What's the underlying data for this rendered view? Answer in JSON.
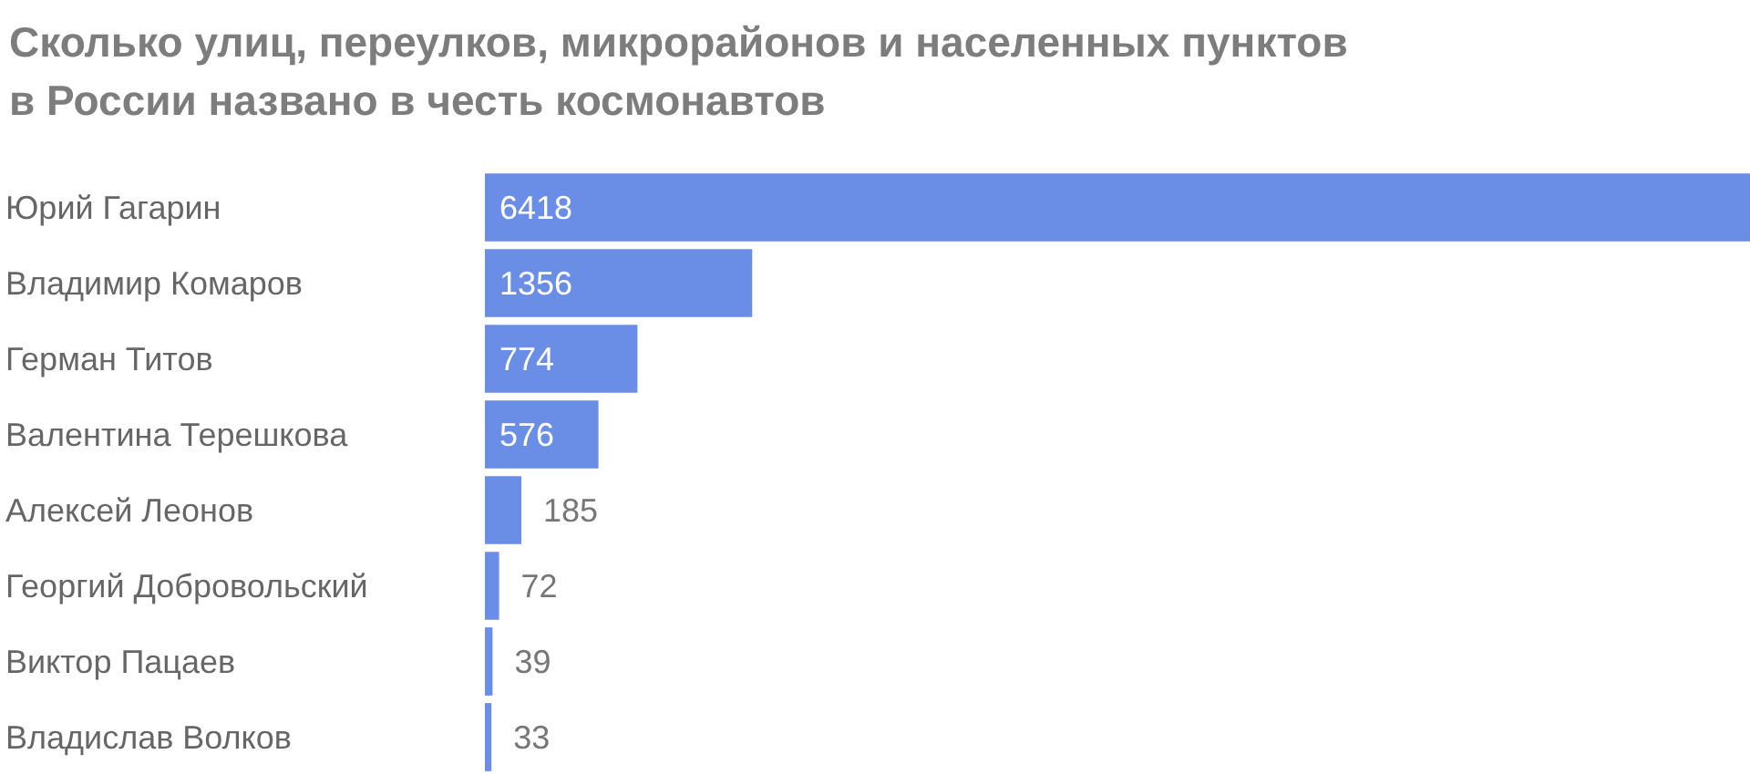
{
  "chart_data": {
    "type": "bar",
    "orientation": "horizontal",
    "title": "Сколько улиц, переулков, микрорайонов и населенных пунктов\nв России названо в честь космонавтов",
    "categories": [
      "Юрий Гагарин",
      "Владимир Комаров",
      "Герман Титов",
      "Валентина Терешкова",
      "Алексей Леонов",
      "Георгий Добровольский",
      "Виктор Пацаев",
      "Владислав Волков"
    ],
    "values": [
      6418,
      1356,
      774,
      576,
      185,
      72,
      39,
      33
    ],
    "color": "#6a8de6",
    "data_labels": true
  }
}
